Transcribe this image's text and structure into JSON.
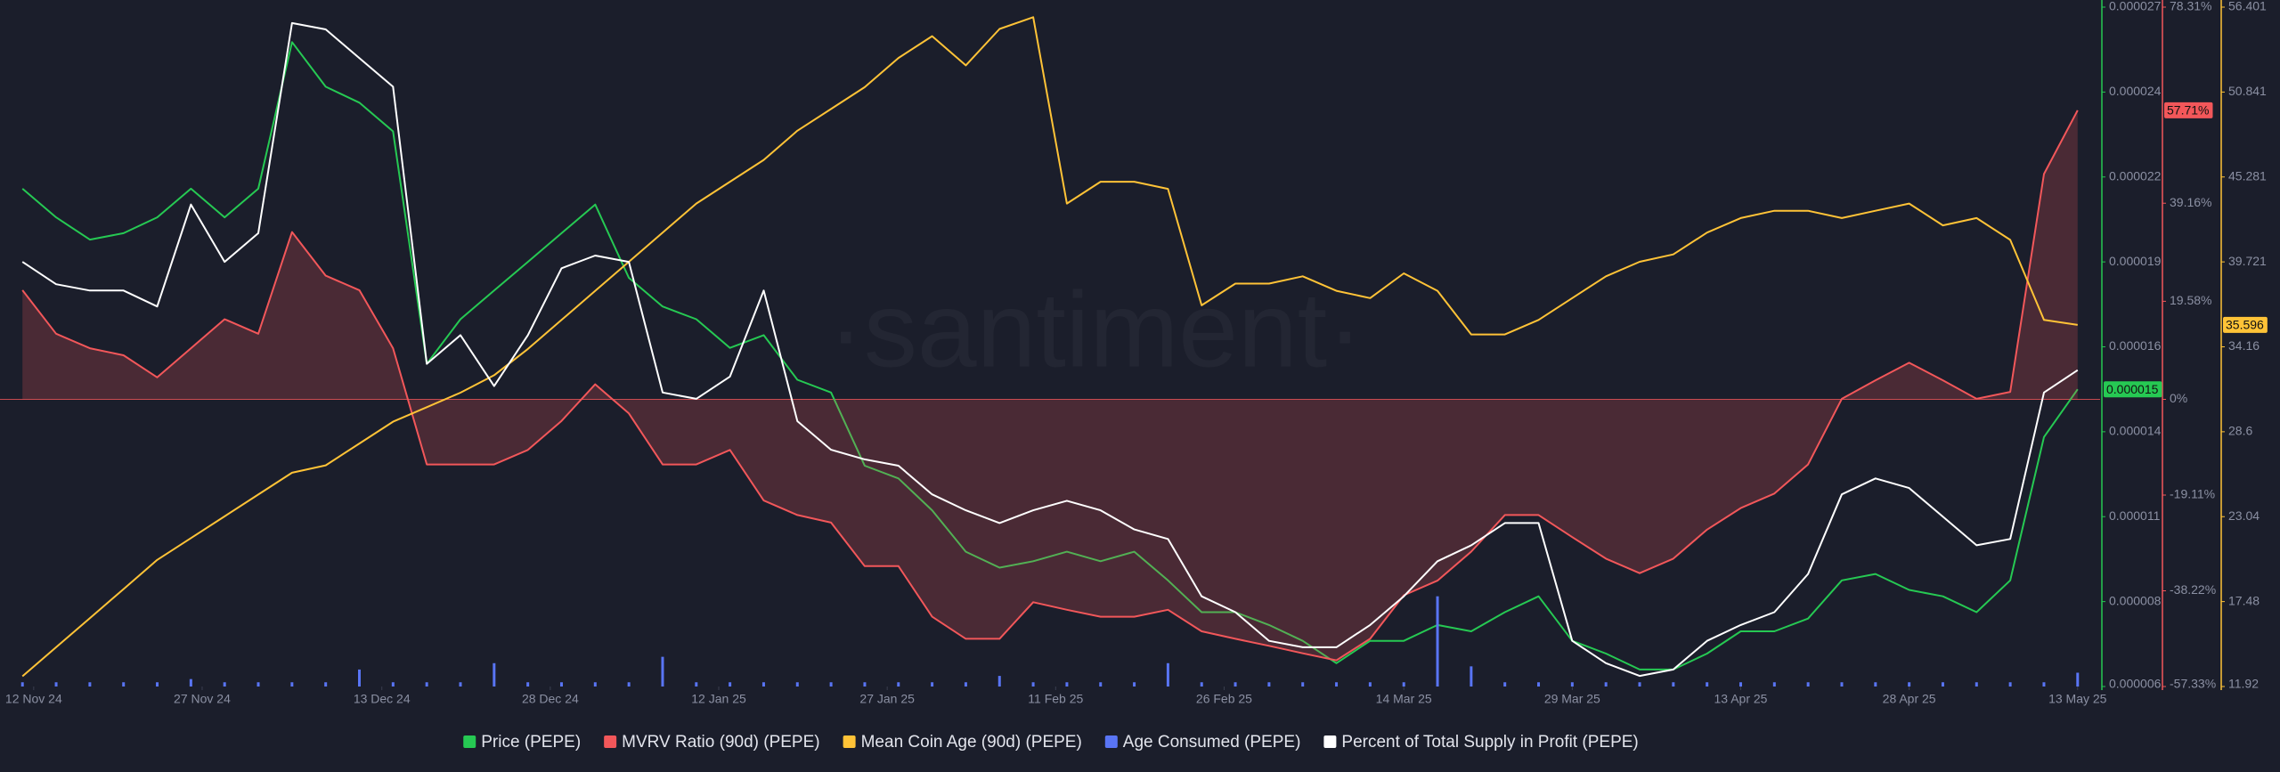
{
  "chart_data": {
    "type": "line",
    "watermark": "·santiment·",
    "x": [
      "2024-11-11",
      "2024-11-14",
      "2024-11-17",
      "2024-11-20",
      "2024-11-23",
      "2024-11-26",
      "2024-11-29",
      "2024-12-02",
      "2024-12-05",
      "2024-12-08",
      "2024-12-11",
      "2024-12-14",
      "2024-12-17",
      "2024-12-20",
      "2024-12-23",
      "2024-12-26",
      "2024-12-29",
      "2025-01-01",
      "2025-01-04",
      "2025-01-07",
      "2025-01-10",
      "2025-01-13",
      "2025-01-16",
      "2025-01-19",
      "2025-01-22",
      "2025-01-25",
      "2025-01-28",
      "2025-01-31",
      "2025-02-03",
      "2025-02-06",
      "2025-02-09",
      "2025-02-12",
      "2025-02-15",
      "2025-02-18",
      "2025-02-21",
      "2025-02-24",
      "2025-02-27",
      "2025-03-02",
      "2025-03-05",
      "2025-03-08",
      "2025-03-11",
      "2025-03-14",
      "2025-03-17",
      "2025-03-20",
      "2025-03-23",
      "2025-03-26",
      "2025-03-29",
      "2025-04-01",
      "2025-04-04",
      "2025-04-07",
      "2025-04-10",
      "2025-04-13",
      "2025-04-16",
      "2025-04-19",
      "2025-04-22",
      "2025-04-25",
      "2025-04-28",
      "2025-05-01",
      "2025-05-04",
      "2025-05-07",
      "2025-05-10",
      "2025-05-13"
    ],
    "xlim": [
      "2024-11-09",
      "2025-05-15"
    ],
    "xticks": [
      {
        "value": "2024-11-12",
        "label": "12 Nov 24"
      },
      {
        "value": "2024-11-27",
        "label": "27 Nov 24"
      },
      {
        "value": "2024-12-13",
        "label": "13 Dec 24"
      },
      {
        "value": "2024-12-28",
        "label": "28 Dec 24"
      },
      {
        "value": "2025-01-12",
        "label": "12 Jan 25"
      },
      {
        "value": "2025-01-27",
        "label": "27 Jan 25"
      },
      {
        "value": "2025-02-11",
        "label": "11 Feb 25"
      },
      {
        "value": "2025-02-26",
        "label": "26 Feb 25"
      },
      {
        "value": "2025-03-14",
        "label": "14 Mar 25"
      },
      {
        "value": "2025-03-29",
        "label": "29 Mar 25"
      },
      {
        "value": "2025-04-13",
        "label": "13 Apr 25"
      },
      {
        "value": "2025-04-28",
        "label": "28 Apr 25"
      },
      {
        "value": "2025-05-13",
        "label": "13 May 25"
      }
    ],
    "ylim": [
      5.6667e-06,
      2.7e-05
    ],
    "yticks": [
      {
        "value": 2.7e-05,
        "label": "0.000027"
      },
      {
        "value": 2.43333e-05,
        "label": "0.000024"
      },
      {
        "value": 2.16667e-05,
        "label": "0.000022"
      },
      {
        "value": 1.9e-05,
        "label": "0.000019"
      },
      {
        "value": 1.63333e-05,
        "label": "0.000016"
      },
      {
        "value": 1.36667e-05,
        "label": "0.000014"
      },
      {
        "value": 1.1e-05,
        "label": "0.000011"
      },
      {
        "value": 8.3333e-06,
        "label": "0.000008"
      },
      {
        "value": 5.6667e-06,
        "label": "0.000006"
      }
    ],
    "y2lim": [
      -57.33,
      78.31
    ],
    "y2ticks": [
      {
        "value": 78.31,
        "label": "78.31%"
      },
      {
        "value": 39.16,
        "label": "39.16%"
      },
      {
        "value": 19.58,
        "label": "19.58%"
      },
      {
        "value": 0,
        "label": "0%"
      },
      {
        "value": -19.11,
        "label": "-19.11%"
      },
      {
        "value": -38.22,
        "label": "-38.22%"
      },
      {
        "value": -57.33,
        "label": "-57.33%"
      }
    ],
    "y3lim": [
      11.92,
      56.401
    ],
    "y3ticks": [
      56.401,
      50.841,
      45.281,
      39.721,
      34.16,
      28.6,
      23.04,
      17.48,
      11.92
    ],
    "series": [
      {
        "name": "Price (PEPE)",
        "color": "#26c953",
        "axis": "y",
        "values": [
          2.13e-05,
          2.04e-05,
          1.97e-05,
          1.99e-05,
          2.04e-05,
          2.13e-05,
          2.04e-05,
          2.13e-05,
          2.59e-05,
          2.45e-05,
          2.4e-05,
          2.31e-05,
          1.58e-05,
          1.72e-05,
          1.81e-05,
          1.9e-05,
          1.99e-05,
          2.08e-05,
          1.85e-05,
          1.76e-05,
          1.72e-05,
          1.63e-05,
          1.67e-05,
          1.53e-05,
          1.49e-05,
          1.26e-05,
          1.22e-05,
          1.12e-05,
          9.9e-06,
          9.4e-06,
          9.6e-06,
          9.9e-06,
          9.6e-06,
          9.9e-06,
          9e-06,
          8e-06,
          8e-06,
          7.6e-06,
          7.1e-06,
          6.4e-06,
          7.1e-06,
          7.1e-06,
          7.6e-06,
          7.4e-06,
          8e-06,
          8.5e-06,
          7.1e-06,
          6.7e-06,
          6.2e-06,
          6.2e-06,
          6.7e-06,
          7.4e-06,
          7.4e-06,
          7.8e-06,
          9e-06,
          9.2e-06,
          8.7e-06,
          8.5e-06,
          8e-06,
          9e-06,
          1.35e-05,
          1.5e-05
        ]
      },
      {
        "name": "MVRV Ratio (90d) (PEPE)",
        "color": "#f2575a",
        "axis": "y2",
        "area": true,
        "values": [
          21.8,
          13.1,
          10.2,
          8.8,
          4.4,
          10.2,
          16.0,
          13.1,
          33.4,
          24.7,
          21.8,
          10.2,
          -13.0,
          -13.0,
          -13.0,
          -10.1,
          -4.3,
          3.0,
          -2.8,
          -13.0,
          -13.0,
          -10.1,
          -20.2,
          -23.1,
          -24.6,
          -33.3,
          -33.3,
          -43.4,
          -47.8,
          -47.8,
          -40.5,
          -42.0,
          -43.4,
          -43.4,
          -42.0,
          -46.3,
          -47.8,
          -49.2,
          -50.7,
          -52.1,
          -47.8,
          -39.1,
          -36.2,
          -30.4,
          -23.1,
          -23.1,
          -27.5,
          -31.8,
          -34.7,
          -31.8,
          -26.0,
          -21.7,
          -18.8,
          -13.0,
          0.1,
          3.8,
          7.3,
          3.8,
          0.1,
          1.5,
          45.0,
          57.71
        ]
      },
      {
        "name": "Mean Coin Age (90d) (PEPE)",
        "color": "#ffc337",
        "axis": "y3",
        "values": [
          12.59,
          14.49,
          16.4,
          18.3,
          20.21,
          21.64,
          23.06,
          24.49,
          25.92,
          26.4,
          27.83,
          29.26,
          30.21,
          31.16,
          32.3,
          34.02,
          35.92,
          37.83,
          39.73,
          41.64,
          43.54,
          44.97,
          46.4,
          48.31,
          49.73,
          51.16,
          53.07,
          54.5,
          52.59,
          54.97,
          55.74,
          43.54,
          44.97,
          44.97,
          44.5,
          36.88,
          38.3,
          38.3,
          38.78,
          37.83,
          37.35,
          38.97,
          37.83,
          34.97,
          34.97,
          35.92,
          37.35,
          38.78,
          39.73,
          40.21,
          41.64,
          42.59,
          43.07,
          43.07,
          42.59,
          43.07,
          43.54,
          42.11,
          42.59,
          41.16,
          35.92,
          35.596
        ]
      },
      {
        "name": "Age Consumed (PEPE)",
        "color": "#5975f5",
        "axis": "y",
        "type": "bar",
        "values": [
          5.8e-06,
          5.8e-06,
          5.8e-06,
          5.8e-06,
          5.8e-06,
          5.9e-06,
          5.8e-06,
          5.8e-06,
          5.8e-06,
          5.8e-06,
          6.2e-06,
          5.8e-06,
          5.8e-06,
          5.8e-06,
          6.4e-06,
          5.8e-06,
          5.8e-06,
          5.8e-06,
          5.8e-06,
          6.6e-06,
          5.8e-06,
          5.8e-06,
          5.8e-06,
          5.8e-06,
          5.8e-06,
          5.8e-06,
          5.8e-06,
          5.8e-06,
          5.8e-06,
          6e-06,
          5.8e-06,
          5.8e-06,
          5.8e-06,
          5.8e-06,
          6.4e-06,
          5.8e-06,
          5.8e-06,
          5.8e-06,
          5.8e-06,
          5.8e-06,
          5.8e-06,
          5.8e-06,
          8.5e-06,
          6.3e-06,
          5.8e-06,
          5.8e-06,
          5.8e-06,
          5.8e-06,
          5.8e-06,
          5.8e-06,
          5.8e-06,
          5.8e-06,
          5.8e-06,
          5.8e-06,
          5.8e-06,
          5.8e-06,
          5.8e-06,
          5.8e-06,
          5.8e-06,
          5.8e-06,
          5.8e-06,
          6.1e-06
        ]
      },
      {
        "name": "Percent of Total Supply in Profit (PEPE)",
        "color": "#ffffff",
        "axis": "y",
        "values": [
          1.9e-05,
          1.83e-05,
          1.81e-05,
          1.81e-05,
          1.76e-05,
          2.08e-05,
          1.9e-05,
          1.99e-05,
          2.65e-05,
          2.63e-05,
          2.54e-05,
          2.45e-05,
          1.58e-05,
          1.67e-05,
          1.51e-05,
          1.67e-05,
          1.88e-05,
          1.92e-05,
          1.9e-05,
          1.49e-05,
          1.47e-05,
          1.54e-05,
          1.81e-05,
          1.4e-05,
          1.31e-05,
          1.28e-05,
          1.26e-05,
          1.17e-05,
          1.12e-05,
          1.08e-05,
          1.12e-05,
          1.15e-05,
          1.12e-05,
          1.06e-05,
          1.03e-05,
          8.5e-06,
          8e-06,
          7.1e-06,
          6.9e-06,
          6.9e-06,
          7.6e-06,
          8.5e-06,
          9.6e-06,
          1.01e-05,
          1.08e-05,
          1.08e-05,
          7.1e-06,
          6.4e-06,
          6e-06,
          6.2e-06,
          7.1e-06,
          7.6e-06,
          8e-06,
          9.2e-06,
          1.17e-05,
          1.22e-05,
          1.19e-05,
          1.1e-05,
          1.01e-05,
          1.03e-05,
          1.49e-05,
          1.56e-05
        ]
      }
    ],
    "annotations": [
      {
        "text": "0.000015",
        "axis": "y",
        "value": 1.5e-05,
        "color": "#26c953"
      },
      {
        "text": "57.71%",
        "axis": "y2",
        "value": 57.71,
        "color": "#f2575a"
      },
      {
        "text": "35.596",
        "axis": "y3",
        "value": 35.596,
        "color": "#ffc337"
      }
    ]
  }
}
